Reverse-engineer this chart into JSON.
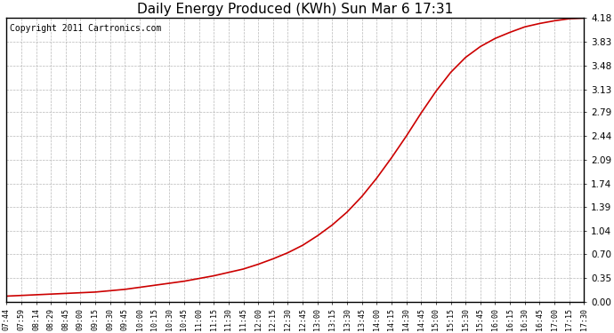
{
  "title": "Daily Energy Produced (KWh) Sun Mar 6 17:31",
  "copyright": "Copyright 2011 Cartronics.com",
  "line_color": "#cc0000",
  "background_color": "#ffffff",
  "plot_bg_color": "#ffffff",
  "grid_color": "#b0b0b0",
  "yticks": [
    0.0,
    0.35,
    0.7,
    1.04,
    1.39,
    1.74,
    2.09,
    2.44,
    2.79,
    3.13,
    3.48,
    3.83,
    4.18
  ],
  "xtick_labels": [
    "07:44",
    "07:59",
    "08:14",
    "08:29",
    "08:45",
    "09:00",
    "09:15",
    "09:30",
    "09:45",
    "10:00",
    "10:15",
    "10:30",
    "10:45",
    "11:00",
    "11:15",
    "11:30",
    "11:45",
    "12:00",
    "12:15",
    "12:30",
    "12:45",
    "13:00",
    "13:15",
    "13:30",
    "13:45",
    "14:00",
    "14:15",
    "14:30",
    "14:45",
    "15:00",
    "15:15",
    "15:30",
    "15:45",
    "16:00",
    "16:15",
    "16:30",
    "16:45",
    "17:00",
    "17:15",
    "17:30"
  ],
  "y_data": [
    0.08,
    0.09,
    0.1,
    0.11,
    0.12,
    0.13,
    0.14,
    0.16,
    0.18,
    0.21,
    0.24,
    0.27,
    0.3,
    0.34,
    0.38,
    0.43,
    0.48,
    0.55,
    0.63,
    0.72,
    0.83,
    0.97,
    1.13,
    1.32,
    1.55,
    1.82,
    2.12,
    2.44,
    2.78,
    3.1,
    3.38,
    3.6,
    3.76,
    3.88,
    3.97,
    4.05,
    4.1,
    4.14,
    4.17,
    4.18
  ],
  "ymin": 0.0,
  "ymax": 4.18,
  "line_width": 1.2,
  "title_fontsize": 11,
  "copyright_fontsize": 7,
  "xtick_fontsize": 6.0,
  "ytick_fontsize": 7.5
}
